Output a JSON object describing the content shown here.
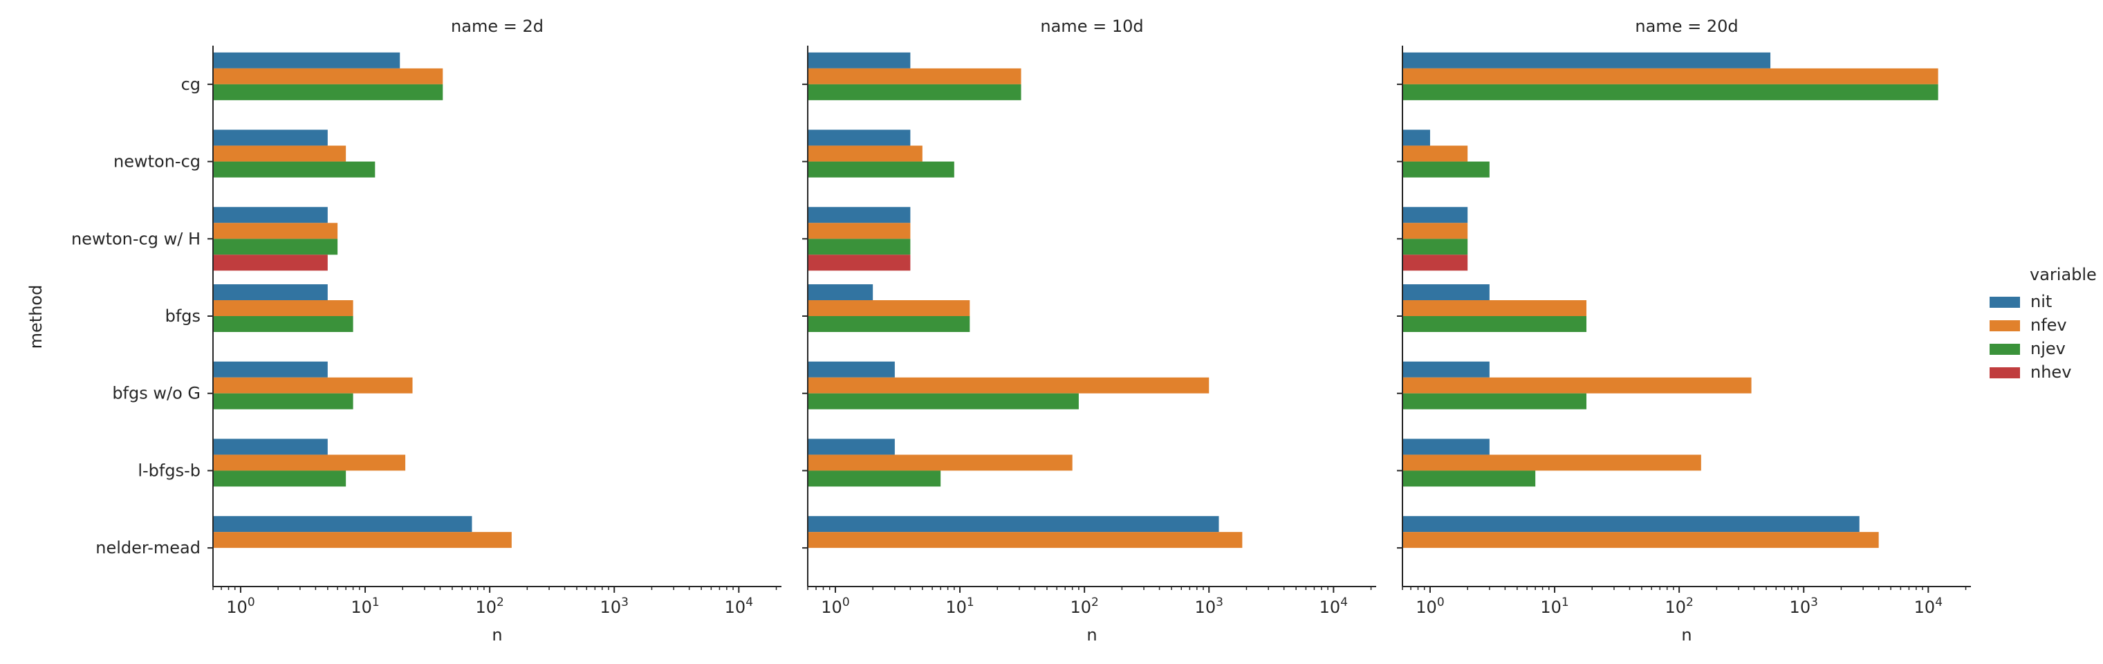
{
  "chart_data": {
    "type": "bar",
    "orientation": "horizontal",
    "xscale": "log",
    "xlim": [
      0.6,
      22000
    ],
    "xticks": [
      1,
      10,
      100,
      1000,
      10000
    ],
    "xtick_labels": [
      "10^0",
      "10^1",
      "10^2",
      "10^3",
      "10^4"
    ],
    "xlabel": "n",
    "ylabel": "method",
    "categories": [
      "cg",
      "newton-cg",
      "newton-cg w/ H",
      "bfgs",
      "bfgs w/o G",
      "l-bfgs-b",
      "nelder-mead"
    ],
    "legend": {
      "title": "variable",
      "placement": "right",
      "entries": [
        "nit",
        "nfev",
        "njev",
        "nhev"
      ]
    },
    "colors": {
      "nit": "#3274a1",
      "nfev": "#e1812c",
      "njev": "#3a923a",
      "nhev": "#c03d3e"
    },
    "panels": [
      {
        "title": "name = 2d",
        "series": [
          {
            "name": "nit",
            "values": [
              19,
              5,
              5,
              5,
              5,
              5,
              72
            ]
          },
          {
            "name": "nfev",
            "values": [
              42,
              7,
              6,
              8,
              24,
              21,
              150
            ]
          },
          {
            "name": "njev",
            "values": [
              42,
              12,
              6,
              8,
              8,
              7,
              null
            ]
          },
          {
            "name": "nhev",
            "values": [
              null,
              null,
              5,
              null,
              null,
              null,
              null
            ]
          }
        ]
      },
      {
        "title": "name = 10d",
        "series": [
          {
            "name": "nit",
            "values": [
              4,
              4,
              4,
              2,
              3,
              3,
              1200
            ]
          },
          {
            "name": "nfev",
            "values": [
              31,
              5,
              4,
              12,
              1000,
              80,
              1850
            ]
          },
          {
            "name": "njev",
            "values": [
              31,
              9,
              4,
              12,
              90,
              7,
              null
            ]
          },
          {
            "name": "nhev",
            "values": [
              null,
              null,
              4,
              null,
              null,
              null,
              null
            ]
          }
        ]
      },
      {
        "title": "name = 20d",
        "series": [
          {
            "name": "nit",
            "values": [
              540,
              1,
              2,
              3,
              3,
              3,
              2800
            ]
          },
          {
            "name": "nfev",
            "values": [
              12000,
              2,
              2,
              18,
              380,
              150,
              4000
            ]
          },
          {
            "name": "njev",
            "values": [
              12000,
              3,
              2,
              18,
              18,
              7,
              null
            ]
          },
          {
            "name": "nhev",
            "values": [
              null,
              null,
              2,
              null,
              null,
              null,
              null
            ]
          }
        ]
      }
    ]
  }
}
